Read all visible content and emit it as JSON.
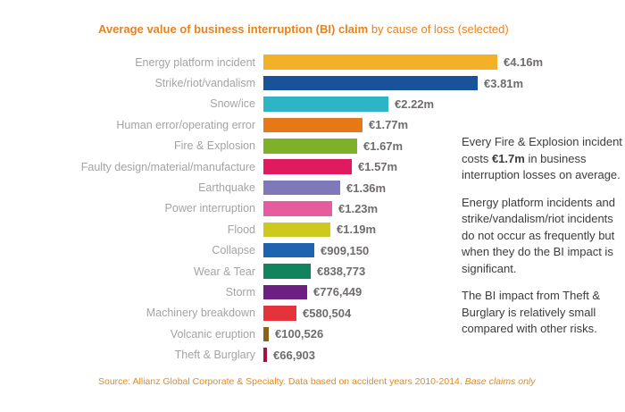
{
  "title": {
    "bold": "Average value of business interruption (BI) claim",
    "regular": " by cause of loss (selected)"
  },
  "chart_data": {
    "type": "bar",
    "orientation": "horizontal",
    "title": "Average value of business interruption (BI) claim by cause of loss (selected)",
    "unit": "EUR",
    "grid": false,
    "legend": false,
    "xlim": [
      0,
      4400000
    ],
    "categories": [
      "Energy platform incident",
      "Strike/riot/vandalism",
      "Snow/ice",
      "Human error/operating error",
      "Fire & Explosion",
      "Faulty design/material/manufacture",
      "Earthquake",
      "Power interruption",
      "Flood",
      "Collapse",
      "Wear & Tear",
      "Storm",
      "Machinery breakdown",
      "Volcanic eruption",
      "Theft & Burglary"
    ],
    "values": [
      4160000,
      3810000,
      2220000,
      1770000,
      1670000,
      1570000,
      1360000,
      1230000,
      1190000,
      909150,
      838773,
      776449,
      580504,
      100526,
      66903
    ],
    "value_labels": [
      "€4.16m",
      "€3.81m",
      "€2.22m",
      "€1.77m",
      "€1.67m",
      "€1.57m",
      "€1.36m",
      "€1.23m",
      "€1.19m",
      "€909,150",
      "€838,773",
      "€776,449",
      "€580,504",
      "€100,526",
      "€66,903"
    ],
    "bar_colors": [
      "#F2B127",
      "#17529B",
      "#2EB5C5",
      "#E67817",
      "#7DB228",
      "#E11A60",
      "#7E79B8",
      "#E75C9F",
      "#CFC81D",
      "#1D63AF",
      "#10845C",
      "#6C2081",
      "#E4333A",
      "#8A6414",
      "#9E1244"
    ]
  },
  "annotation": {
    "para1_before": "Every Fire & Explosion incident\ncosts ",
    "para1_bold": "€1.7m",
    "para1_after": " in business\ninterruption losses on average.",
    "para2": "Energy platform incidents and\nstrike/vandalism/riot incidents\ndo not occur as frequently but\nwhen they do the BI impact is\nsignificant.",
    "para3": "The BI impact from Theft &\nBurglary is relatively small\ncompared with other risks."
  },
  "source": {
    "text": "Source: Allianz Global Corporate & Specialty. Data based on accident years 2010-2014. ",
    "italic": "Base claims only"
  },
  "colors": {
    "title_orange": "#E8821E",
    "source_orange": "#E8881E",
    "category_label_gray": "#A5A3A4",
    "value_label_gray": "#6F6C6B",
    "annotation_text": "#3D3C3C",
    "background": "#FFFFFF"
  }
}
